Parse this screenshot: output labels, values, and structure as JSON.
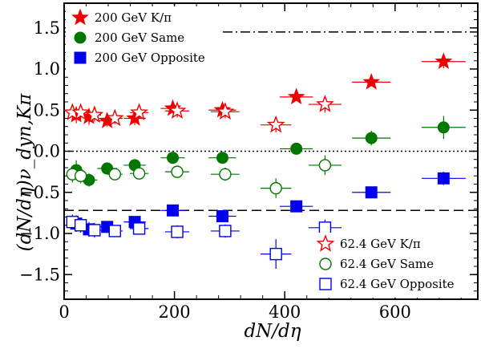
{
  "chart_data": {
    "type": "scatter",
    "xlabel": "dN/dη",
    "ylabel": "(dN/dη)ν_dyn,Kπ",
    "xlim": [
      0,
      750
    ],
    "ylim": [
      -1.8,
      1.8
    ],
    "x_ticks": [
      "0",
      "200",
      "400",
      "600"
    ],
    "y_ticks": [
      "−1.5",
      "−1.0",
      "−0.5",
      "0.0",
      "0.5",
      "1.0",
      "1.5"
    ],
    "reference_lines": [
      {
        "name": "dash-dot",
        "y": 1.45,
        "style": "dashdot"
      },
      {
        "name": "zero",
        "y": 0.0,
        "style": "dotted"
      },
      {
        "name": "dashed",
        "y": -0.72,
        "style": "dashed"
      }
    ],
    "series": [
      {
        "name": "200 GeV K/π",
        "legend_text": "200 GeV K/π",
        "marker": "star",
        "filled": true,
        "color": "#ee0000",
        "points": [
          {
            "x": 22,
            "y": 0.44,
            "ex": 12,
            "ey": 0.1
          },
          {
            "x": 45,
            "y": 0.42,
            "ex": 15,
            "ey": 0.1
          },
          {
            "x": 78,
            "y": 0.37,
            "ex": 18,
            "ey": 0.07
          },
          {
            "x": 128,
            "y": 0.4,
            "ex": 20,
            "ey": 0.08
          },
          {
            "x": 197,
            "y": 0.52,
            "ex": 22,
            "ey": 0.06
          },
          {
            "x": 287,
            "y": 0.5,
            "ex": 25,
            "ey": 0.07
          },
          {
            "x": 421,
            "y": 0.66,
            "ex": 30,
            "ey": 0.05
          },
          {
            "x": 557,
            "y": 0.84,
            "ex": 35,
            "ey": 0.05
          },
          {
            "x": 688,
            "y": 1.09,
            "ex": 40,
            "ey": 0.08
          }
        ]
      },
      {
        "name": "200 GeV Same",
        "legend_text": "200 GeV Same",
        "marker": "circle",
        "filled": true,
        "color": "#007700",
        "points": [
          {
            "x": 22,
            "y": -0.23,
            "ex": 12,
            "ey": 0.12
          },
          {
            "x": 45,
            "y": -0.35,
            "ex": 15,
            "ey": 0.08
          },
          {
            "x": 78,
            "y": -0.21,
            "ex": 18,
            "ey": 0.05
          },
          {
            "x": 128,
            "y": -0.17,
            "ex": 20,
            "ey": 0.05
          },
          {
            "x": 197,
            "y": -0.08,
            "ex": 22,
            "ey": 0.05
          },
          {
            "x": 287,
            "y": -0.08,
            "ex": 25,
            "ey": 0.05
          },
          {
            "x": 421,
            "y": 0.03,
            "ex": 30,
            "ey": 0.05
          },
          {
            "x": 557,
            "y": 0.16,
            "ex": 35,
            "ey": 0.09
          },
          {
            "x": 688,
            "y": 0.29,
            "ex": 40,
            "ey": 0.14
          }
        ]
      },
      {
        "name": "200 GeV Opposite",
        "legend_text": "200 GeV Opposite",
        "marker": "square",
        "filled": true,
        "color": "#0000ee",
        "points": [
          {
            "x": 22,
            "y": -0.88,
            "ex": 12,
            "ey": 0.1
          },
          {
            "x": 45,
            "y": -0.95,
            "ex": 15,
            "ey": 0.09
          },
          {
            "x": 78,
            "y": -0.92,
            "ex": 18,
            "ey": 0.07
          },
          {
            "x": 128,
            "y": -0.86,
            "ex": 20,
            "ey": 0.06
          },
          {
            "x": 197,
            "y": -0.72,
            "ex": 22,
            "ey": 0.06
          },
          {
            "x": 287,
            "y": -0.79,
            "ex": 25,
            "ey": 0.06
          },
          {
            "x": 421,
            "y": -0.67,
            "ex": 30,
            "ey": 0.05
          },
          {
            "x": 557,
            "y": -0.5,
            "ex": 35,
            "ey": 0.06
          },
          {
            "x": 688,
            "y": -0.33,
            "ex": 40,
            "ey": 0.08
          }
        ]
      },
      {
        "name": "62.4 GeV K/π",
        "legend_text": "62.4 GeV K/π",
        "marker": "star",
        "filled": false,
        "color": "#ee0000",
        "points": [
          {
            "x": 15,
            "y": 0.47,
            "ex": 8,
            "ey": 0.08
          },
          {
            "x": 30,
            "y": 0.47,
            "ex": 10,
            "ey": 0.08
          },
          {
            "x": 55,
            "y": 0.44,
            "ex": 12,
            "ey": 0.08
          },
          {
            "x": 92,
            "y": 0.4,
            "ex": 14,
            "ey": 0.07
          },
          {
            "x": 136,
            "y": 0.47,
            "ex": 17,
            "ey": 0.08
          },
          {
            "x": 205,
            "y": 0.49,
            "ex": 22,
            "ey": 0.08
          },
          {
            "x": 292,
            "y": 0.48,
            "ex": 26,
            "ey": 0.08
          },
          {
            "x": 384,
            "y": 0.32,
            "ex": 28,
            "ey": 0.09
          },
          {
            "x": 473,
            "y": 0.57,
            "ex": 30,
            "ey": 0.1
          }
        ]
      },
      {
        "name": "62.4 GeV Same",
        "legend_text": "62.4 GeV Same",
        "marker": "circle",
        "filled": false,
        "color": "#007700",
        "points": [
          {
            "x": 15,
            "y": -0.28,
            "ex": 8,
            "ey": 0.1
          },
          {
            "x": 30,
            "y": -0.3,
            "ex": 10,
            "ey": 0.09
          },
          {
            "x": 92,
            "y": -0.28,
            "ex": 14,
            "ey": 0.06
          },
          {
            "x": 136,
            "y": -0.27,
            "ex": 17,
            "ey": 0.06
          },
          {
            "x": 205,
            "y": -0.25,
            "ex": 22,
            "ey": 0.07
          },
          {
            "x": 292,
            "y": -0.28,
            "ex": 26,
            "ey": 0.08
          },
          {
            "x": 384,
            "y": -0.45,
            "ex": 28,
            "ey": 0.12
          },
          {
            "x": 473,
            "y": -0.17,
            "ex": 30,
            "ey": 0.12
          }
        ]
      },
      {
        "name": "62.4 GeV Opposite",
        "legend_text": "62.4 GeV Opposite",
        "marker": "square",
        "filled": false,
        "color": "#0000ee",
        "points": [
          {
            "x": 15,
            "y": -0.86,
            "ex": 8,
            "ey": 0.09
          },
          {
            "x": 30,
            "y": -0.9,
            "ex": 10,
            "ey": 0.09
          },
          {
            "x": 55,
            "y": -0.96,
            "ex": 12,
            "ey": 0.09
          },
          {
            "x": 92,
            "y": -0.97,
            "ex": 14,
            "ey": 0.07
          },
          {
            "x": 136,
            "y": -0.94,
            "ex": 17,
            "ey": 0.07
          },
          {
            "x": 205,
            "y": -0.98,
            "ex": 22,
            "ey": 0.08
          },
          {
            "x": 292,
            "y": -0.97,
            "ex": 26,
            "ey": 0.08
          },
          {
            "x": 384,
            "y": -1.25,
            "ex": 28,
            "ey": 0.18
          },
          {
            "x": 473,
            "y": -0.93,
            "ex": 30,
            "ey": 0.1
          }
        ]
      }
    ],
    "legends": [
      {
        "position": "top-left",
        "series_indices": [
          0,
          1,
          2
        ]
      },
      {
        "position": "bottom-right",
        "series_indices": [
          3,
          4,
          5
        ]
      }
    ]
  }
}
